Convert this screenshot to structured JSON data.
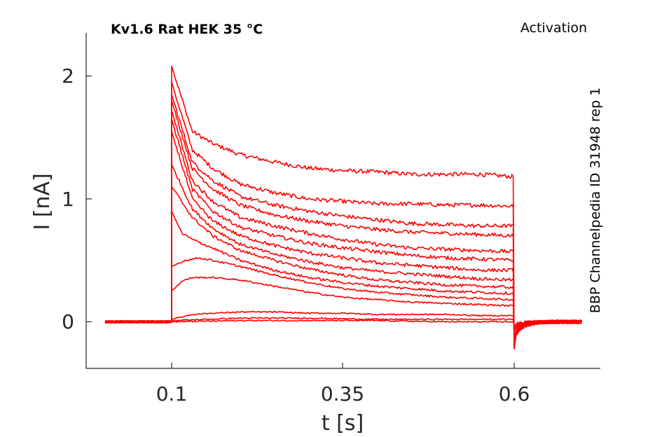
{
  "chart_data": {
    "type": "line",
    "title_left": "Kv1.6  Rat  HEK  35 °C",
    "title_right": "Activation",
    "side_label": "BBP Channelpedia ID 31948 rep 1",
    "xlabel": "t [s]",
    "ylabel": "I [nA]",
    "xlim": [
      -0.025,
      0.725
    ],
    "ylim": [
      -0.38,
      2.35
    ],
    "xticks": [
      0.1,
      0.35,
      0.6
    ],
    "xtick_labels": [
      "0.1",
      "0.35",
      "0.6"
    ],
    "yticks": [
      0,
      1,
      2
    ],
    "ytick_labels": [
      "0",
      "1",
      "2"
    ],
    "grid": false,
    "color": "#ff0000",
    "stim_on": 0.1,
    "stim_off": 0.6,
    "t_start": 0.003,
    "t_end": 0.7,
    "series": [
      {
        "values": [
          [
            0.1,
            2.08
          ],
          [
            0.13,
            1.55
          ],
          [
            0.16,
            1.45
          ],
          [
            0.2,
            1.36
          ],
          [
            0.25,
            1.3
          ],
          [
            0.3,
            1.25
          ],
          [
            0.35,
            1.23
          ],
          [
            0.4,
            1.22
          ],
          [
            0.45,
            1.2
          ],
          [
            0.5,
            1.2
          ],
          [
            0.55,
            1.2
          ],
          [
            0.6,
            1.18
          ]
        ]
      },
      {
        "values": [
          [
            0.1,
            1.95
          ],
          [
            0.13,
            1.4
          ],
          [
            0.16,
            1.25
          ],
          [
            0.2,
            1.12
          ],
          [
            0.25,
            1.05
          ],
          [
            0.3,
            1.0
          ],
          [
            0.35,
            0.98
          ],
          [
            0.4,
            0.96
          ],
          [
            0.45,
            0.96
          ],
          [
            0.5,
            0.95
          ],
          [
            0.55,
            0.95
          ],
          [
            0.6,
            0.94
          ]
        ]
      },
      {
        "values": [
          [
            0.1,
            1.85
          ],
          [
            0.13,
            1.3
          ],
          [
            0.16,
            1.15
          ],
          [
            0.2,
            1.02
          ],
          [
            0.25,
            0.95
          ],
          [
            0.3,
            0.9
          ],
          [
            0.35,
            0.86
          ],
          [
            0.4,
            0.83
          ],
          [
            0.45,
            0.8
          ],
          [
            0.5,
            0.79
          ],
          [
            0.55,
            0.78
          ],
          [
            0.6,
            0.78
          ]
        ]
      },
      {
        "values": [
          [
            0.1,
            1.8
          ],
          [
            0.13,
            1.25
          ],
          [
            0.16,
            1.08
          ],
          [
            0.2,
            0.95
          ],
          [
            0.25,
            0.87
          ],
          [
            0.3,
            0.82
          ],
          [
            0.35,
            0.78
          ],
          [
            0.4,
            0.75
          ],
          [
            0.45,
            0.73
          ],
          [
            0.5,
            0.72
          ],
          [
            0.55,
            0.71
          ],
          [
            0.6,
            0.7
          ]
        ]
      },
      {
        "values": [
          [
            0.1,
            1.72
          ],
          [
            0.13,
            1.15
          ],
          [
            0.16,
            0.98
          ],
          [
            0.2,
            0.85
          ],
          [
            0.25,
            0.78
          ],
          [
            0.3,
            0.72
          ],
          [
            0.35,
            0.67
          ],
          [
            0.4,
            0.63
          ],
          [
            0.45,
            0.6
          ],
          [
            0.5,
            0.59
          ],
          [
            0.55,
            0.58
          ],
          [
            0.6,
            0.57
          ]
        ]
      },
      {
        "values": [
          [
            0.1,
            1.65
          ],
          [
            0.13,
            1.08
          ],
          [
            0.16,
            0.9
          ],
          [
            0.2,
            0.77
          ],
          [
            0.25,
            0.7
          ],
          [
            0.3,
            0.64
          ],
          [
            0.35,
            0.6
          ],
          [
            0.4,
            0.57
          ],
          [
            0.45,
            0.54
          ],
          [
            0.5,
            0.52
          ],
          [
            0.55,
            0.51
          ],
          [
            0.6,
            0.5
          ]
        ]
      },
      {
        "values": [
          [
            0.1,
            1.55
          ],
          [
            0.13,
            1.0
          ],
          [
            0.16,
            0.82
          ],
          [
            0.2,
            0.7
          ],
          [
            0.25,
            0.62
          ],
          [
            0.3,
            0.56
          ],
          [
            0.35,
            0.52
          ],
          [
            0.4,
            0.48
          ],
          [
            0.45,
            0.46
          ],
          [
            0.5,
            0.44
          ],
          [
            0.55,
            0.42
          ],
          [
            0.6,
            0.42
          ]
        ]
      },
      {
        "values": [
          [
            0.1,
            1.28
          ],
          [
            0.13,
            0.92
          ],
          [
            0.16,
            0.76
          ],
          [
            0.2,
            0.63
          ],
          [
            0.25,
            0.55
          ],
          [
            0.3,
            0.49
          ],
          [
            0.35,
            0.44
          ],
          [
            0.4,
            0.41
          ],
          [
            0.45,
            0.39
          ],
          [
            0.5,
            0.37
          ],
          [
            0.55,
            0.35
          ],
          [
            0.6,
            0.34
          ]
        ]
      },
      {
        "values": [
          [
            0.1,
            1.1
          ],
          [
            0.13,
            0.85
          ],
          [
            0.16,
            0.7
          ],
          [
            0.2,
            0.58
          ],
          [
            0.25,
            0.5
          ],
          [
            0.3,
            0.43
          ],
          [
            0.35,
            0.38
          ],
          [
            0.4,
            0.34
          ],
          [
            0.45,
            0.32
          ],
          [
            0.5,
            0.3
          ],
          [
            0.55,
            0.29
          ],
          [
            0.6,
            0.28
          ]
        ]
      },
      {
        "values": [
          [
            0.1,
            0.9
          ],
          [
            0.115,
            0.72
          ],
          [
            0.13,
            0.67
          ],
          [
            0.16,
            0.6
          ],
          [
            0.2,
            0.5
          ],
          [
            0.25,
            0.42
          ],
          [
            0.3,
            0.36
          ],
          [
            0.35,
            0.32
          ],
          [
            0.4,
            0.29
          ],
          [
            0.45,
            0.27
          ],
          [
            0.5,
            0.25
          ],
          [
            0.55,
            0.24
          ],
          [
            0.6,
            0.23
          ]
        ]
      },
      {
        "values": [
          [
            0.1,
            0.45
          ],
          [
            0.12,
            0.5
          ],
          [
            0.14,
            0.52
          ],
          [
            0.16,
            0.5
          ],
          [
            0.2,
            0.45
          ],
          [
            0.25,
            0.38
          ],
          [
            0.3,
            0.32
          ],
          [
            0.35,
            0.27
          ],
          [
            0.4,
            0.24
          ],
          [
            0.45,
            0.22
          ],
          [
            0.5,
            0.2
          ],
          [
            0.55,
            0.19
          ],
          [
            0.6,
            0.18
          ]
        ]
      },
      {
        "values": [
          [
            0.1,
            0.25
          ],
          [
            0.115,
            0.33
          ],
          [
            0.13,
            0.36
          ],
          [
            0.16,
            0.36
          ],
          [
            0.2,
            0.34
          ],
          [
            0.25,
            0.29
          ],
          [
            0.3,
            0.24
          ],
          [
            0.35,
            0.2
          ],
          [
            0.4,
            0.18
          ],
          [
            0.45,
            0.16
          ],
          [
            0.5,
            0.15
          ],
          [
            0.55,
            0.14
          ],
          [
            0.6,
            0.13
          ]
        ]
      },
      {
        "values": [
          [
            0.1,
            0.02
          ],
          [
            0.13,
            0.06
          ],
          [
            0.16,
            0.07
          ],
          [
            0.2,
            0.08
          ],
          [
            0.25,
            0.08
          ],
          [
            0.3,
            0.07
          ],
          [
            0.35,
            0.07
          ],
          [
            0.4,
            0.06
          ],
          [
            0.45,
            0.06
          ],
          [
            0.5,
            0.06
          ],
          [
            0.55,
            0.05
          ],
          [
            0.6,
            0.05
          ]
        ]
      },
      {
        "values": [
          [
            0.1,
            0.01
          ],
          [
            0.2,
            0.03
          ],
          [
            0.3,
            0.03
          ],
          [
            0.4,
            0.02
          ],
          [
            0.5,
            0.02
          ],
          [
            0.6,
            0.02
          ]
        ]
      },
      {
        "values": [
          [
            0.1,
            0.0
          ],
          [
            0.2,
            0.01
          ],
          [
            0.3,
            0.01
          ],
          [
            0.4,
            0.01
          ],
          [
            0.5,
            0.0
          ],
          [
            0.6,
            0.0
          ]
        ]
      }
    ]
  }
}
